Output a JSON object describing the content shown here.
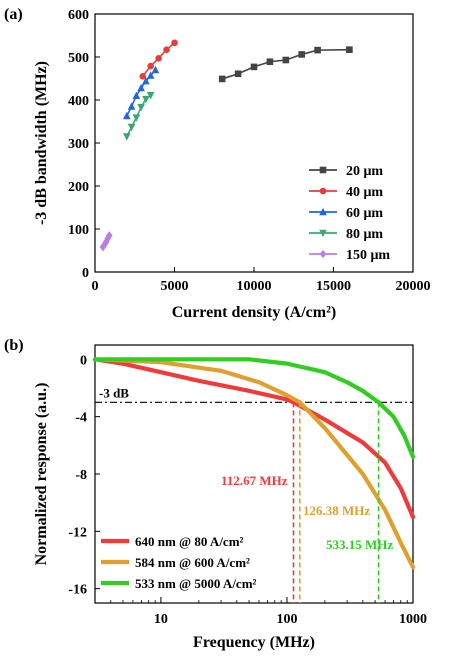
{
  "chart_data": [
    {
      "panel_label": "(a)",
      "type": "scatter",
      "xlabel": "Current density (A/cm²)",
      "ylabel": "-3 dB bandwidth (MHz)",
      "xlim": [
        0,
        20000
      ],
      "ylim": [
        0,
        600
      ],
      "xticks": [
        0,
        5000,
        10000,
        15000,
        20000
      ],
      "yticks": [
        0,
        100,
        200,
        300,
        400,
        500,
        600
      ],
      "legend_position": "bottom-right",
      "series": [
        {
          "name": "20 μm",
          "color": "#444444",
          "marker": "square",
          "x": [
            8000,
            9000,
            10000,
            11000,
            12000,
            13000,
            14000,
            16000
          ],
          "y": [
            449,
            461,
            477,
            489,
            493,
            506,
            516,
            517
          ]
        },
        {
          "name": "40 μm",
          "color": "#e83c3c",
          "marker": "circle",
          "x": [
            3000,
            3500,
            4000,
            4500,
            5000
          ],
          "y": [
            455,
            479,
            497,
            517,
            533
          ]
        },
        {
          "name": "60 μm",
          "color": "#2266dd",
          "marker": "triangle-up",
          "x": [
            2000,
            2300,
            2600,
            2900,
            3200,
            3500,
            3800
          ],
          "y": [
            363,
            385,
            410,
            428,
            444,
            457,
            470
          ]
        },
        {
          "name": "80 μm",
          "color": "#3aa872",
          "marker": "triangle-down",
          "x": [
            2000,
            2300,
            2600,
            2900,
            3200,
            3500
          ],
          "y": [
            315,
            337,
            359,
            383,
            402,
            411
          ]
        },
        {
          "name": "150 μm",
          "color": "#b97ee0",
          "marker": "diamond",
          "x": [
            500,
            600,
            700,
            800,
            900
          ],
          "y": [
            58,
            64,
            70,
            78,
            85
          ]
        }
      ]
    },
    {
      "panel_label": "(b)",
      "type": "line",
      "xlabel": "Frequency (MHz)",
      "ylabel": "Normalized response (a.u.)",
      "xscale": "log",
      "xlim": [
        3,
        1000
      ],
      "ylim": [
        -17,
        1
      ],
      "xticks": [
        10,
        100,
        1000
      ],
      "yticks": [
        0,
        -4,
        -8,
        -12,
        -16
      ],
      "reference_line": {
        "label": "-3 dB",
        "y": -3
      },
      "legend_position": "bottom-left",
      "series": [
        {
          "name": "640 nm @ 80 A/cm²",
          "color": "#ee3b3b",
          "x": [
            3,
            5,
            10,
            20,
            50,
            100,
            112.67,
            200,
            400,
            600,
            800,
            1000
          ],
          "y": [
            0,
            -0.3,
            -0.9,
            -1.5,
            -2.2,
            -2.8,
            -3.0,
            -4.2,
            -5.8,
            -7.2,
            -9.0,
            -11.0
          ],
          "cutoff_label": "112.67 MHz",
          "cutoff_x": 112.67
        },
        {
          "name": "584 nm @ 600 A/cm²",
          "color": "#e0a030",
          "x": [
            3,
            10,
            30,
            60,
            100,
            126.38,
            200,
            400,
            600,
            800,
            1000
          ],
          "y": [
            0,
            -0.2,
            -0.8,
            -1.6,
            -2.5,
            -3.0,
            -4.8,
            -8.0,
            -10.5,
            -12.8,
            -14.5
          ],
          "cutoff_label": "126.38 MHz",
          "cutoff_x": 126.38
        },
        {
          "name": "533 nm @ 5000 A/cm²",
          "color": "#33cc22",
          "x": [
            3,
            50,
            100,
            200,
            300,
            400,
            533.15,
            700,
            850,
            1000
          ],
          "y": [
            0,
            0,
            -0.3,
            -0.9,
            -1.6,
            -2.2,
            -3.0,
            -4.0,
            -5.3,
            -6.8
          ],
          "cutoff_label": "533.15 MHz",
          "cutoff_x": 533.15
        }
      ]
    }
  ]
}
